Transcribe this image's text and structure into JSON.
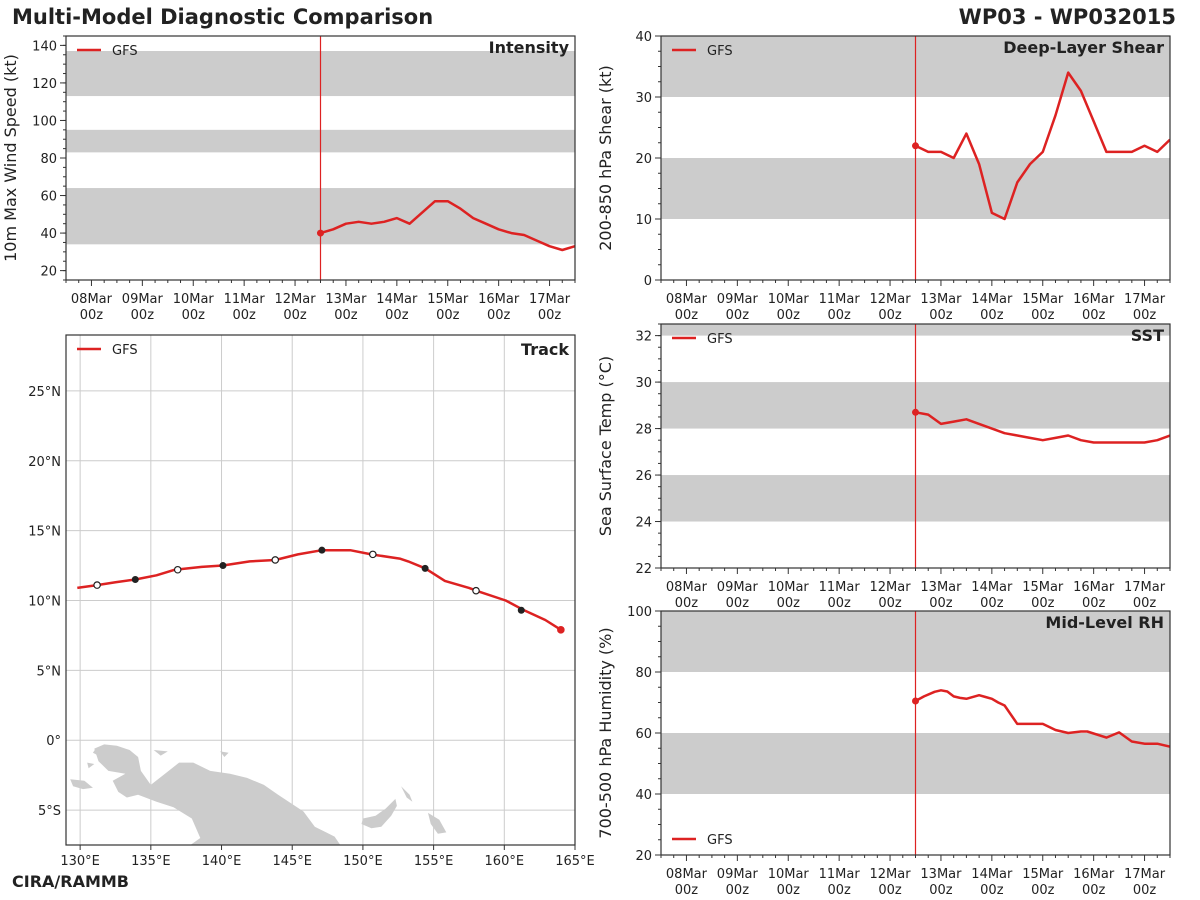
{
  "header": {
    "title": "Multi-Model Diagnostic Comparison",
    "storm_id": "WP03 - WP032015"
  },
  "footer": {
    "credit": "CIRA/RAMMB"
  },
  "colors": {
    "model": "#dd2222",
    "band": "#cccccc",
    "grid": "#cccccc",
    "land": "#cccccc",
    "axis": "#333333"
  },
  "time_axis": {
    "labels": [
      [
        "08Mar",
        "00z"
      ],
      [
        "09Mar",
        "00z"
      ],
      [
        "10Mar",
        "00z"
      ],
      [
        "11Mar",
        "00z"
      ],
      [
        "12Mar",
        "00z"
      ],
      [
        "13Mar",
        "00z"
      ],
      [
        "14Mar",
        "00z"
      ],
      [
        "15Mar",
        "00z"
      ],
      [
        "16Mar",
        "00z"
      ],
      [
        "17Mar",
        "00z"
      ]
    ],
    "domain_hours": [
      -12,
      228
    ],
    "init_hour": 108
  },
  "chart_data": [
    {
      "id": "intensity",
      "type": "line",
      "title": "Intensity",
      "ylabel": "10m Max Wind Speed (kt)",
      "ylim": [
        15,
        145
      ],
      "yticks": [
        20,
        40,
        60,
        80,
        100,
        120,
        140
      ],
      "bands": [
        [
          34,
          64
        ],
        [
          83,
          95
        ],
        [
          113,
          137
        ]
      ],
      "legend": {
        "label": "GFS",
        "position": "top-left"
      },
      "series": [
        {
          "name": "GFS",
          "hours": [
            108,
            114,
            120,
            126,
            132,
            138,
            144,
            150,
            156,
            162,
            168,
            174,
            180,
            186,
            192,
            198,
            204,
            210,
            216,
            222,
            228
          ],
          "values": [
            40,
            42,
            45,
            46,
            45,
            46,
            48,
            45,
            51,
            57,
            57,
            53,
            48,
            45,
            42,
            40,
            39,
            36,
            33,
            31,
            33
          ]
        }
      ]
    },
    {
      "id": "shear",
      "type": "line",
      "title": "Deep-Layer Shear",
      "ylabel": "200-850 hPa Shear (kt)",
      "ylim": [
        0,
        40
      ],
      "yticks": [
        0,
        10,
        20,
        30,
        40
      ],
      "bands": [
        [
          10,
          20
        ],
        [
          30,
          40
        ]
      ],
      "legend": {
        "label": "GFS",
        "position": "top-left"
      },
      "series": [
        {
          "name": "GFS",
          "hours": [
            108,
            114,
            120,
            126,
            132,
            138,
            144,
            150,
            156,
            162,
            168,
            174,
            180,
            186,
            192,
            198,
            204,
            210,
            216,
            222,
            228
          ],
          "values": [
            22,
            21,
            21,
            20,
            24,
            19,
            11,
            10,
            16,
            19,
            21,
            27,
            34,
            31,
            26,
            21,
            21,
            21,
            22,
            21,
            23
          ]
        }
      ]
    },
    {
      "id": "sst",
      "type": "line",
      "title": "SST",
      "ylabel": "Sea Surface Temp (°C)",
      "ylim": [
        22,
        32.5
      ],
      "yticks": [
        22,
        24,
        26,
        28,
        30,
        32
      ],
      "bands": [
        [
          24,
          26
        ],
        [
          28,
          30
        ],
        [
          32,
          32.5
        ]
      ],
      "legend": {
        "label": "GFS",
        "position": "top-left"
      },
      "series": [
        {
          "name": "GFS",
          "hours": [
            108,
            114,
            120,
            126,
            132,
            138,
            144,
            150,
            156,
            162,
            168,
            174,
            180,
            186,
            192,
            198,
            204,
            210,
            216,
            222,
            228
          ],
          "values": [
            28.7,
            28.6,
            28.2,
            28.3,
            28.4,
            28.2,
            28.0,
            27.8,
            27.7,
            27.6,
            27.5,
            27.6,
            27.7,
            27.5,
            27.4,
            27.4,
            27.4,
            27.4,
            27.4,
            27.5,
            27.7
          ]
        }
      ]
    },
    {
      "id": "rh",
      "type": "line",
      "title": "Mid-Level RH",
      "ylabel": "700-500 hPa Humidity (%)",
      "ylim": [
        20,
        100
      ],
      "yticks": [
        20,
        40,
        60,
        80,
        100
      ],
      "bands": [
        [
          40,
          60
        ],
        [
          80,
          100
        ]
      ],
      "legend": {
        "label": "GFS",
        "position": "bottom-left"
      },
      "series": [
        {
          "name": "GFS",
          "hours": [
            108,
            112,
            117,
            120,
            123,
            126,
            129,
            132,
            138,
            141,
            144,
            147,
            150,
            156,
            162,
            168,
            174,
            180,
            186,
            189,
            198,
            204,
            210,
            216,
            222,
            228
          ],
          "values": [
            70.5,
            72,
            73.5,
            74,
            73.6,
            72,
            71.5,
            71.2,
            72.4,
            71.8,
            71.2,
            70,
            69,
            63,
            63,
            63,
            61,
            60,
            60.5,
            60.5,
            58.5,
            60.2,
            57.2,
            56.5,
            56.5,
            55.5
          ]
        }
      ]
    },
    {
      "id": "track",
      "type": "scatter",
      "title": "Track",
      "legend": {
        "label": "GFS",
        "position": "top-left"
      },
      "xlim": [
        129,
        165
      ],
      "ylim": [
        -7.5,
        29
      ],
      "xticks": [
        130,
        135,
        140,
        145,
        150,
        155,
        160,
        165
      ],
      "xtick_labels": [
        "130°E",
        "135°E",
        "140°E",
        "145°E",
        "150°E",
        "155°E",
        "160°E",
        "165°E"
      ],
      "yticks": [
        -5,
        0,
        5,
        10,
        15,
        20,
        25
      ],
      "ytick_labels": [
        "5°S",
        "0°",
        "5°N",
        "10°N",
        "15°N",
        "20°N",
        "25°N"
      ],
      "series": [
        {
          "name": "GFS",
          "lon": [
            164.0,
            162.9,
            161.4,
            160.1,
            158.3,
            157.5,
            155.8,
            154.4,
            153.2,
            152.6,
            150.6,
            149.1,
            147.1,
            145.4,
            143.8,
            142.0,
            140.1,
            138.6,
            136.7,
            135.4,
            133.9,
            132.5,
            131.2,
            129.8
          ],
          "lat": [
            7.9,
            8.6,
            9.3,
            10.0,
            10.6,
            10.9,
            11.4,
            12.3,
            12.8,
            13.0,
            13.3,
            13.6,
            13.6,
            13.3,
            12.9,
            12.8,
            12.5,
            12.4,
            12.2,
            11.8,
            11.5,
            11.3,
            11.1,
            10.9
          ]
        }
      ],
      "markers": [
        {
          "lon": 164.0,
          "lat": 7.9,
          "style": "init"
        },
        {
          "lon": 161.2,
          "lat": 9.3,
          "style": "filled"
        },
        {
          "lon": 158.0,
          "lat": 10.7,
          "style": "open"
        },
        {
          "lon": 154.4,
          "lat": 12.3,
          "style": "filled"
        },
        {
          "lon": 150.7,
          "lat": 13.3,
          "style": "open"
        },
        {
          "lon": 147.1,
          "lat": 13.6,
          "style": "filled"
        },
        {
          "lon": 143.8,
          "lat": 12.9,
          "style": "open"
        },
        {
          "lon": 140.1,
          "lat": 12.5,
          "style": "filled"
        },
        {
          "lon": 136.9,
          "lat": 12.2,
          "style": "open"
        },
        {
          "lon": 133.9,
          "lat": 11.5,
          "style": "filled"
        },
        {
          "lon": 131.2,
          "lat": 11.1,
          "style": "open"
        }
      ],
      "land": [
        [
          [
            131.0,
            -0.6
          ],
          [
            131.7,
            -0.3
          ],
          [
            132.6,
            -0.4
          ],
          [
            133.5,
            -0.7
          ],
          [
            134.1,
            -1.2
          ],
          [
            134.3,
            -2.2
          ],
          [
            135.0,
            -3.2
          ],
          [
            136.0,
            -2.4
          ],
          [
            137.0,
            -1.6
          ],
          [
            138.0,
            -1.6
          ],
          [
            139.2,
            -2.2
          ],
          [
            140.6,
            -2.4
          ],
          [
            141.8,
            -2.7
          ],
          [
            143.0,
            -3.2
          ],
          [
            144.0,
            -3.9
          ],
          [
            144.9,
            -4.5
          ],
          [
            145.8,
            -5.1
          ],
          [
            146.6,
            -6.2
          ],
          [
            147.4,
            -6.6
          ],
          [
            148.0,
            -6.9
          ],
          [
            148.4,
            -7.5
          ],
          [
            137.8,
            -7.5
          ],
          [
            138.5,
            -7.0
          ],
          [
            137.9,
            -5.6
          ],
          [
            136.6,
            -4.8
          ],
          [
            135.4,
            -4.4
          ],
          [
            134.1,
            -3.9
          ],
          [
            133.3,
            -4.1
          ],
          [
            132.7,
            -3.7
          ],
          [
            132.3,
            -2.9
          ],
          [
            133.2,
            -2.4
          ],
          [
            132.0,
            -2.2
          ],
          [
            131.3,
            -1.5
          ]
        ],
        [
          [
            129.3,
            -2.8
          ],
          [
            130.3,
            -2.9
          ],
          [
            130.9,
            -3.4
          ],
          [
            130.2,
            -3.5
          ],
          [
            129.5,
            -3.3
          ]
        ],
        [
          [
            150.0,
            -5.6
          ],
          [
            150.9,
            -5.4
          ],
          [
            151.6,
            -4.9
          ],
          [
            152.3,
            -4.2
          ],
          [
            152.4,
            -4.7
          ],
          [
            152.0,
            -5.4
          ],
          [
            151.3,
            -6.2
          ],
          [
            150.6,
            -6.3
          ],
          [
            149.9,
            -6.0
          ]
        ],
        [
          [
            152.7,
            -3.3
          ],
          [
            153.3,
            -3.9
          ],
          [
            153.5,
            -4.4
          ],
          [
            153.1,
            -4.1
          ]
        ],
        [
          [
            154.6,
            -5.2
          ],
          [
            155.4,
            -5.7
          ],
          [
            155.9,
            -6.6
          ],
          [
            155.3,
            -6.7
          ],
          [
            154.8,
            -6.0
          ]
        ],
        [
          [
            131.1,
            -0.6
          ],
          [
            131.4,
            -0.8
          ],
          [
            131.3,
            -1.1
          ],
          [
            130.9,
            -0.9
          ]
        ],
        [
          [
            130.5,
            -1.6
          ],
          [
            131.0,
            -1.7
          ],
          [
            130.6,
            -2.0
          ]
        ],
        [
          [
            135.2,
            -0.7
          ],
          [
            136.2,
            -0.8
          ],
          [
            135.7,
            -1.1
          ]
        ],
        [
          [
            139.9,
            -0.8
          ],
          [
            140.5,
            -0.9
          ],
          [
            140.2,
            -1.2
          ]
        ]
      ]
    }
  ]
}
